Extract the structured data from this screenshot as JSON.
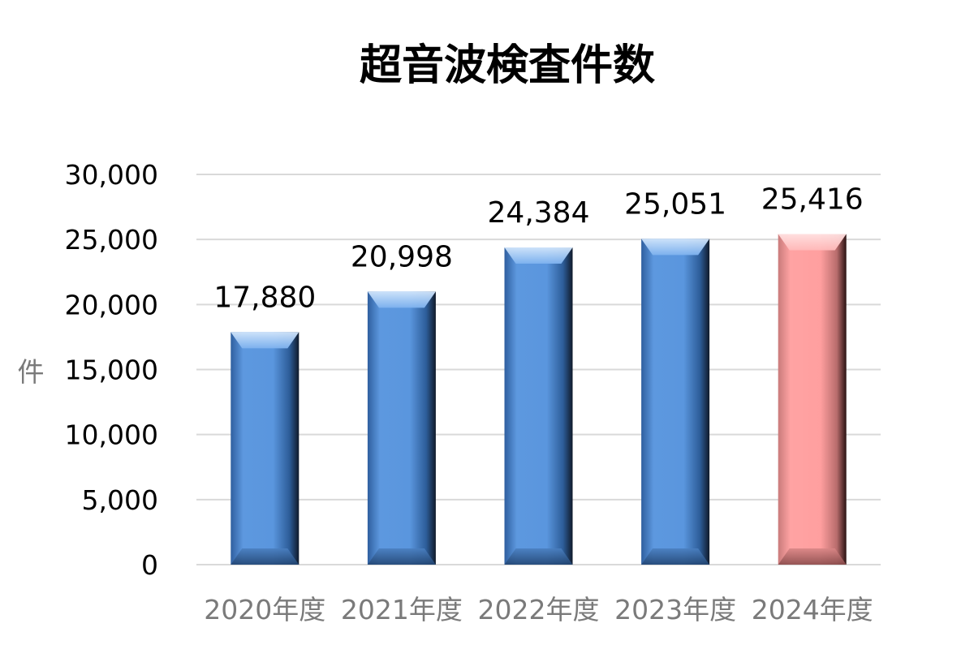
{
  "chart_data": {
    "type": "bar",
    "title": "超音波検査件数",
    "xlabel": "",
    "ylabel": "件",
    "categories": [
      "2020年度",
      "2021年度",
      "2022年度",
      "2023年度",
      "2024年度"
    ],
    "values": [
      17880,
      20998,
      24384,
      25051,
      25416
    ],
    "data_labels": [
      "17,880",
      "20,998",
      "24,384",
      "25,051",
      "25,416"
    ],
    "ylim": [
      0,
      30000
    ],
    "yticks": [
      0,
      5000,
      10000,
      15000,
      20000,
      25000,
      30000
    ],
    "ytick_labels": [
      "0",
      "5,000",
      "10,000",
      "15,000",
      "20,000",
      "25,000",
      "30,000"
    ],
    "grid": true,
    "legend": "none",
    "colors": {
      "default_bar": "#5b9bd5",
      "highlight_bar": "#ff9e9e"
    },
    "highlight_index": 4
  }
}
